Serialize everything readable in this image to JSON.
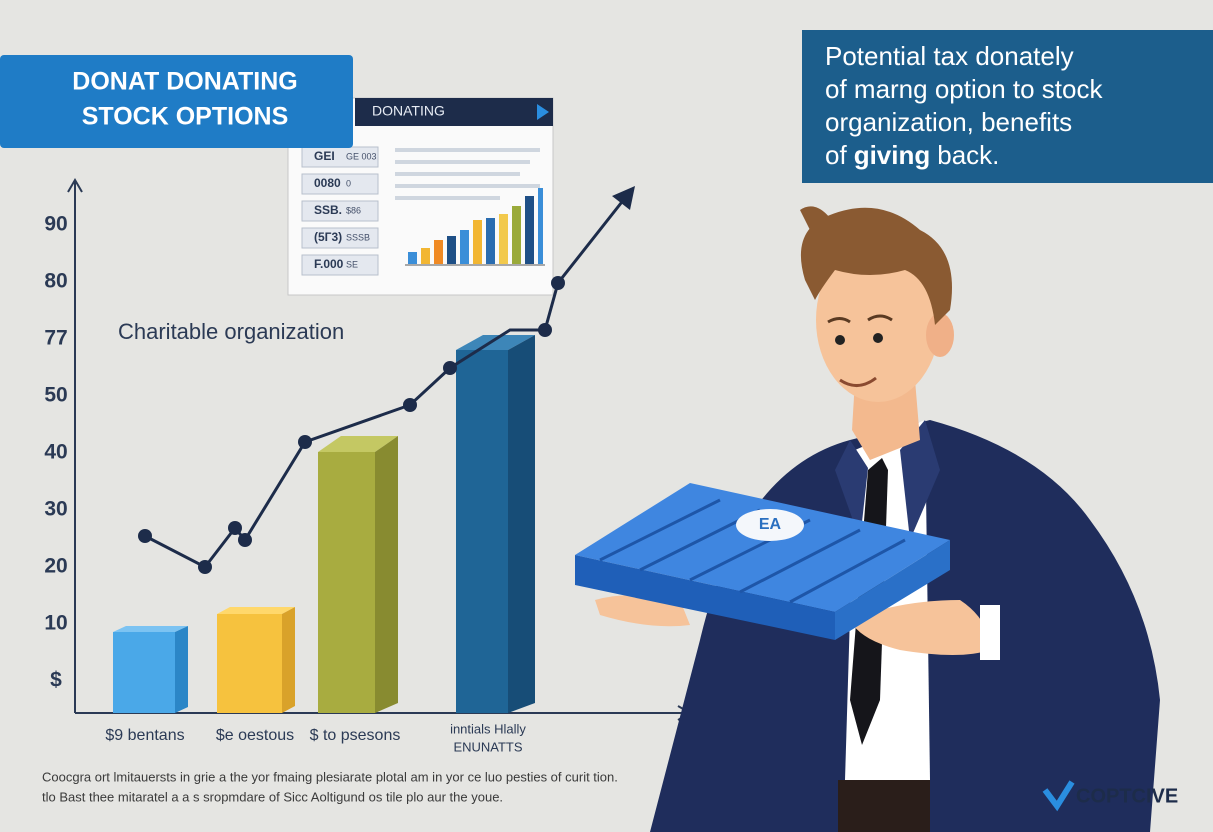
{
  "banner": {
    "line1": "DONAT DONATING",
    "line2": "STOCK OPTIONS"
  },
  "callout": {
    "line1": "Potential tax donately",
    "line2": "of marng option to stock",
    "line3": "organization, benefits",
    "line4_start": "of",
    "line4_bold": "giving",
    "line4_end": "back."
  },
  "document": {
    "header": "DONATING",
    "rows": [
      {
        "label": "GEI",
        "note": "GE 003"
      },
      {
        "label": "0080",
        "note": "0"
      },
      {
        "label": "SSB.",
        "note": "$86"
      },
      {
        "label": "(5Г3)",
        "note": "SSSB"
      },
      {
        "label": "F.000",
        "note": "SE"
      }
    ]
  },
  "chart": {
    "label": "Charitable organization",
    "y_labels": [
      "90",
      "80",
      "77",
      "50",
      "40",
      "30",
      "20",
      "10",
      "$"
    ],
    "categories": [
      "$9 bentans",
      "$e oestous",
      "$ to psesons"
    ],
    "last_category": {
      "line1": "inntials Hlally",
      "line2": "ENUNATTS"
    }
  },
  "badge": "EA",
  "footer": {
    "line1": "Coocgra ort lmitauersts in grie a the yor fmaing plesiarate plotal am in yor ce luo pesties of curit tion.",
    "line2": "tlo Bast thee mitaratel a a s sropmdare of Sicc Aoltigund os tile plo aur the youe."
  },
  "brand": "COPTCIVE"
}
